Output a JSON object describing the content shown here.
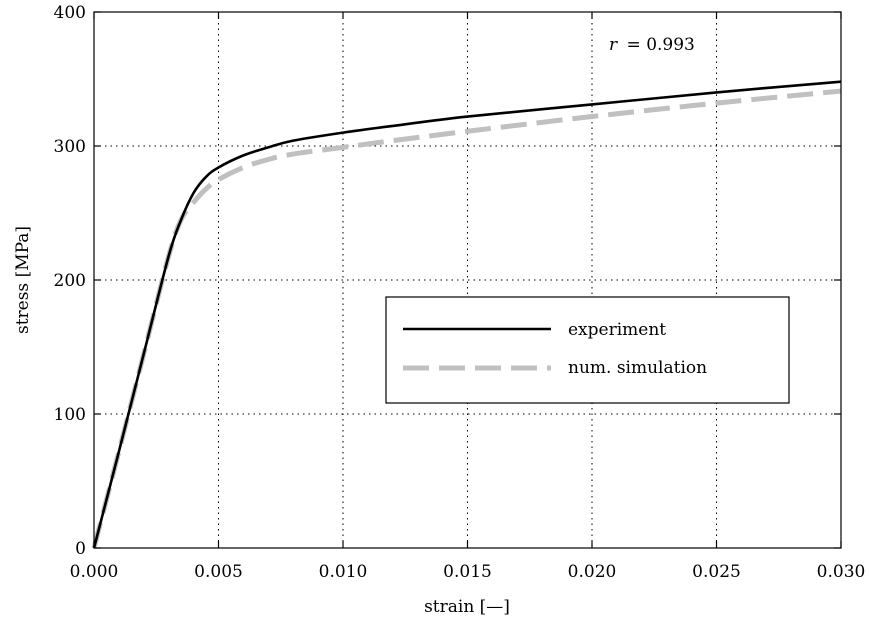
{
  "chart_data": {
    "type": "line",
    "xlabel": "strain [—]",
    "ylabel": "stress [MPa]",
    "xlim": [
      0,
      0.03
    ],
    "ylim": [
      0,
      400
    ],
    "xticks": [
      {
        "value": 0.0,
        "label": "0.000"
      },
      {
        "value": 0.005,
        "label": "0.005"
      },
      {
        "value": 0.01,
        "label": "0.010"
      },
      {
        "value": 0.015,
        "label": "0.015"
      },
      {
        "value": 0.02,
        "label": "0.020"
      },
      {
        "value": 0.025,
        "label": "0.025"
      },
      {
        "value": 0.03,
        "label": "0.030"
      }
    ],
    "yticks": [
      {
        "value": 0,
        "label": "0"
      },
      {
        "value": 100,
        "label": "100"
      },
      {
        "value": 200,
        "label": "200"
      },
      {
        "value": 300,
        "label": "300"
      },
      {
        "value": 400,
        "label": "400"
      }
    ],
    "grid": true,
    "legend_position": "center-right",
    "annotation": {
      "r_symbol": "r",
      "eq_text": "= 0.993"
    },
    "series": [
      {
        "name": "experiment",
        "color": "#000000",
        "style": "solid",
        "x": [
          0.0,
          0.001,
          0.002,
          0.003,
          0.0035,
          0.004,
          0.0045,
          0.005,
          0.006,
          0.007,
          0.008,
          0.01,
          0.012,
          0.015,
          0.02,
          0.025,
          0.03
        ],
        "y": [
          0,
          72,
          145,
          218,
          245,
          265,
          277,
          284,
          293,
          299,
          304,
          310,
          315,
          322,
          331,
          340,
          348
        ]
      },
      {
        "name": "num. simulation",
        "color": "#c0c0c0",
        "style": "dashed",
        "x": [
          0.0,
          0.001,
          0.002,
          0.003,
          0.0035,
          0.004,
          0.0045,
          0.005,
          0.006,
          0.007,
          0.008,
          0.01,
          0.012,
          0.015,
          0.02,
          0.025,
          0.03
        ],
        "y": [
          0,
          72,
          145,
          218,
          245,
          258,
          268,
          275,
          284,
          290,
          294,
          299,
          304,
          311,
          322,
          332,
          341
        ]
      }
    ]
  }
}
